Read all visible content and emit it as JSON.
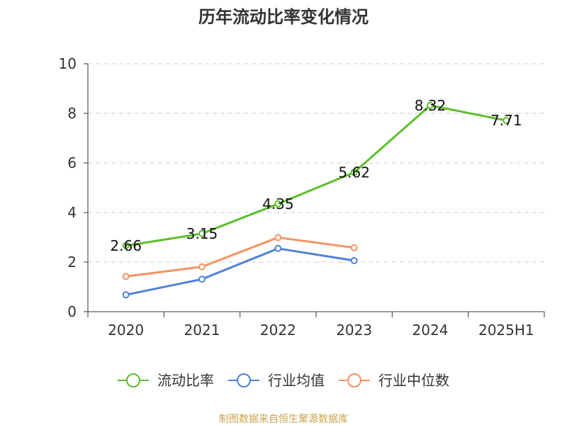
{
  "chart_data": {
    "type": "line",
    "title": "历年流动比率变化情况",
    "xlabel": "",
    "ylabel": "",
    "categories": [
      "2020",
      "2021",
      "2022",
      "2023",
      "2024",
      "2025H1"
    ],
    "ylim": [
      0,
      10
    ],
    "yticks": [
      0,
      2,
      4,
      6,
      8,
      10
    ],
    "grid": true,
    "legend_position": "bottom",
    "series": [
      {
        "name": "流动比率",
        "color": "#5cbf2a",
        "values": [
          2.66,
          3.15,
          4.35,
          5.62,
          8.32,
          7.71
        ],
        "labels": [
          "2.66",
          "3.15",
          "4.35",
          "5.62",
          "8.32",
          "7.71"
        ]
      },
      {
        "name": "行业均值",
        "color": "#4f81d6",
        "values": [
          0.68,
          1.31,
          2.55,
          2.06,
          null,
          null
        ]
      },
      {
        "name": "行业中位数",
        "color": "#f59360",
        "values": [
          1.42,
          1.81,
          2.99,
          2.58,
          null,
          null
        ]
      }
    ]
  },
  "source_text": "制图数据来自恒生聚源数据库",
  "source_color": "#c8a24a"
}
